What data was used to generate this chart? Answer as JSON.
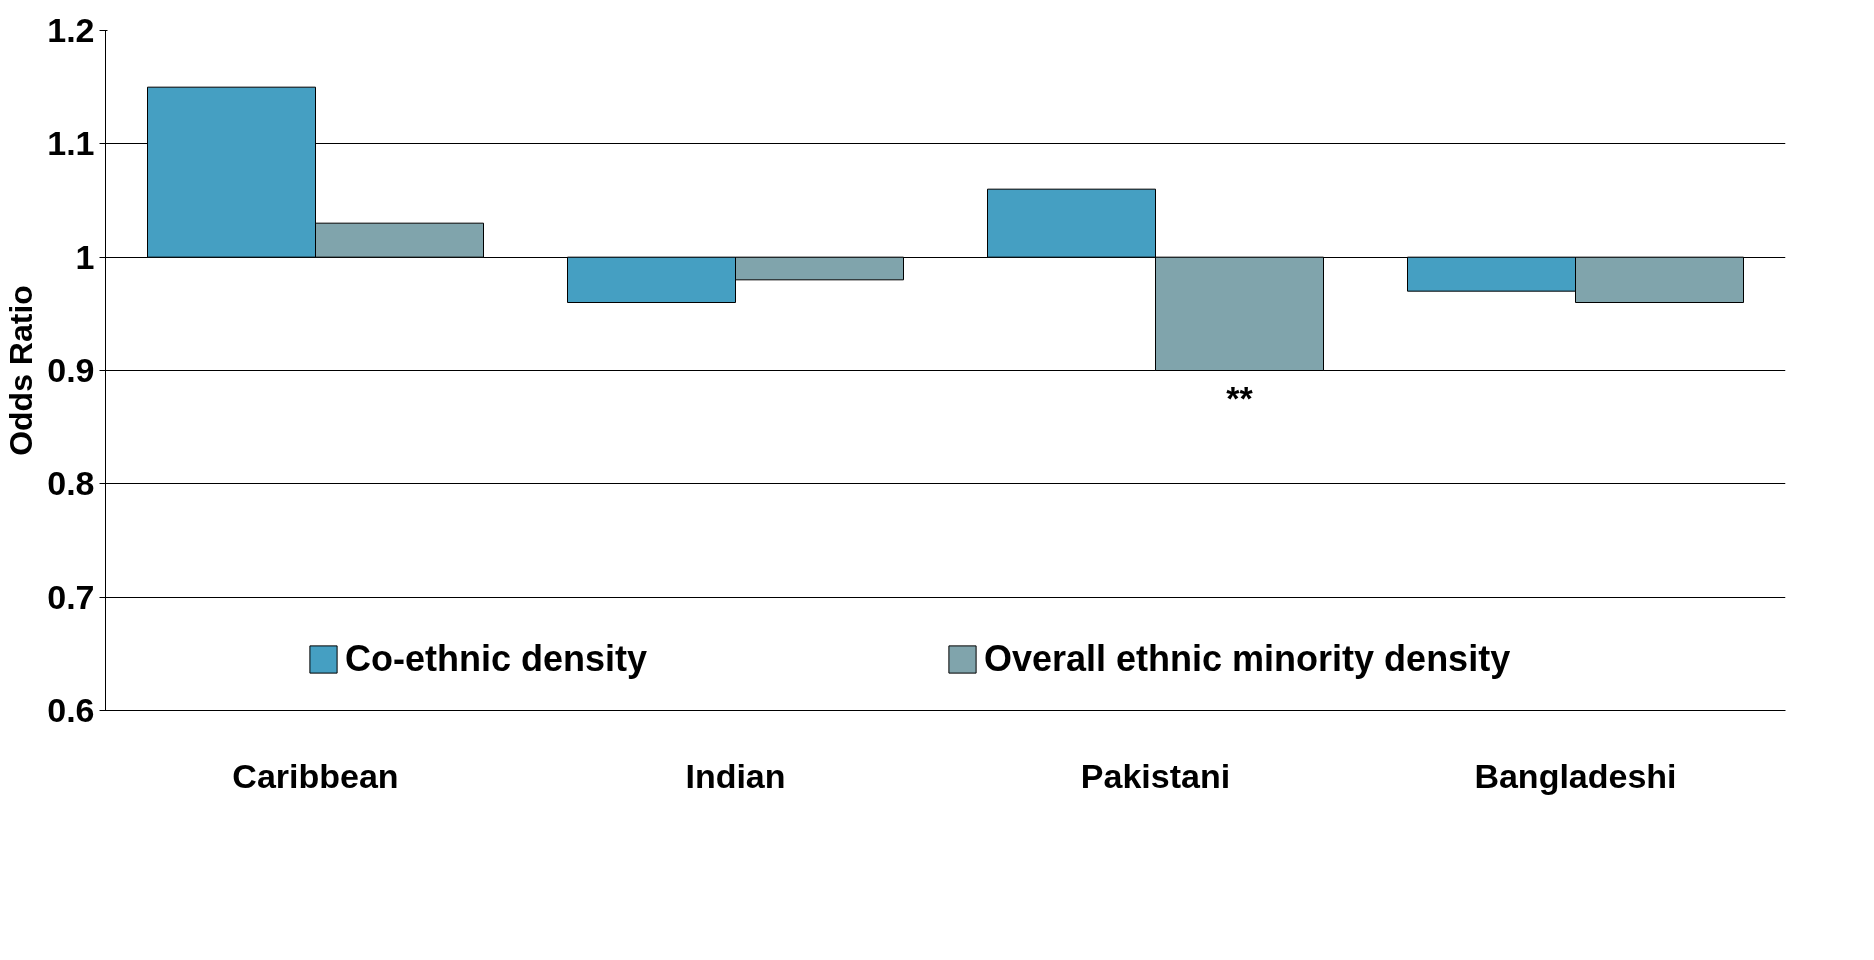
{
  "chart_data": {
    "type": "bar",
    "ylabel": "Odds Ratio",
    "categories": [
      "Caribbean",
      "Indian",
      "Pakistani",
      "Bangladeshi"
    ],
    "series": [
      {
        "name": "Co-ethnic density",
        "color": "#459fc2",
        "values": [
          0.15,
          -0.04,
          0.06,
          -0.03
        ],
        "base": [
          1,
          1,
          1,
          1
        ]
      },
      {
        "name": "Overall ethnic minority density",
        "color": "#80a4ac",
        "values": [
          0.03,
          -0.02,
          -0.1,
          -0.04
        ],
        "base": [
          1,
          1,
          1,
          1
        ]
      }
    ],
    "ylim": [
      0.6,
      1.2
    ],
    "yticks": [
      0.6,
      0.7,
      0.8,
      0.9,
      1,
      1.1,
      1.2
    ],
    "grid": "y",
    "legend": "bottom",
    "annotations": [
      {
        "text": "**",
        "x": "Pakistani",
        "y": 0.9
      }
    ]
  }
}
